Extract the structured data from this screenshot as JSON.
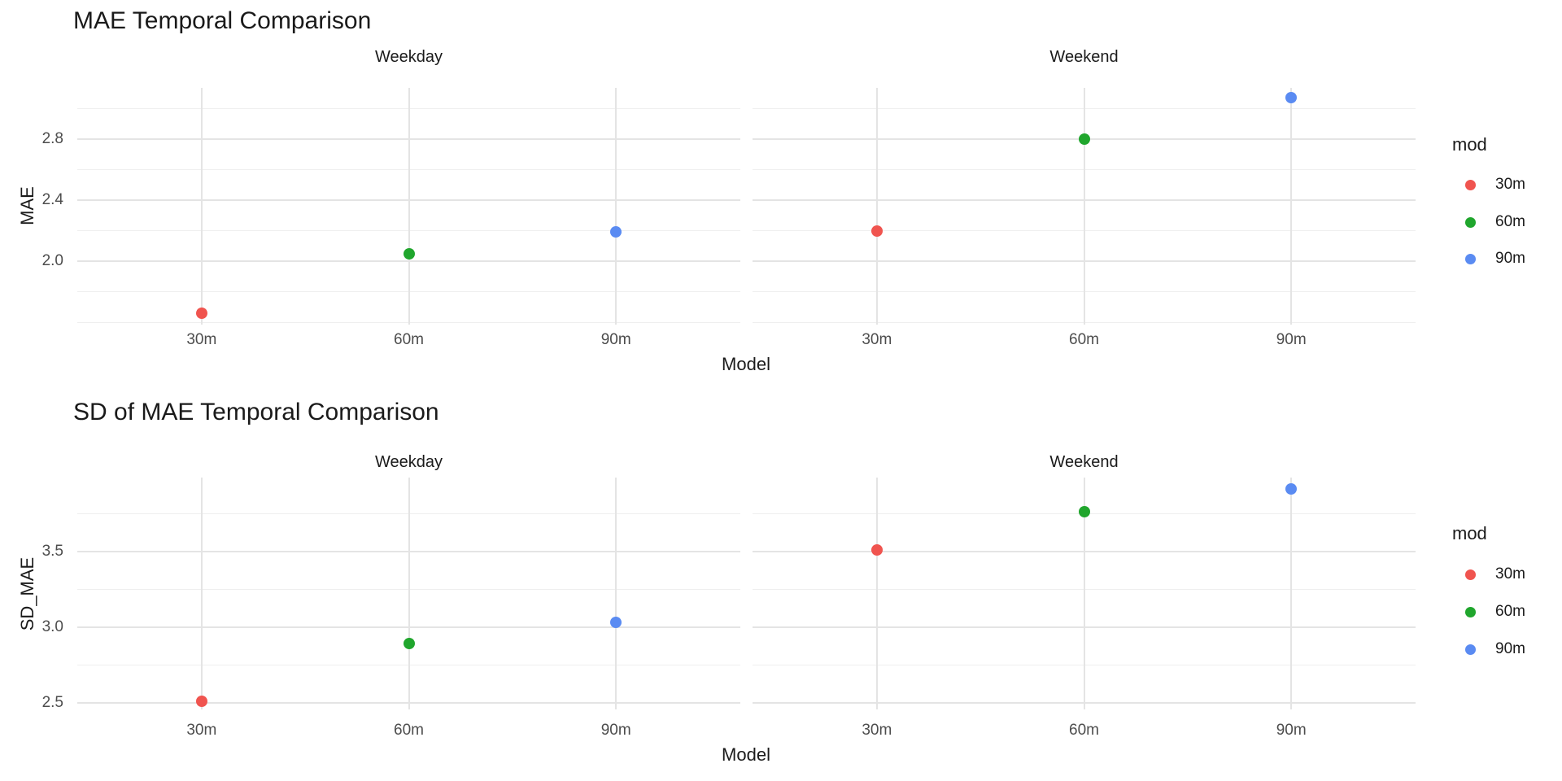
{
  "chart_data": [
    {
      "type": "scatter",
      "title": "MAE Temporal Comparison",
      "xlabel": "Model",
      "ylabel": "MAE",
      "facets": [
        "Weekday",
        "Weekend"
      ],
      "categories": [
        "30m",
        "60m",
        "90m"
      ],
      "series": [
        {
          "name": "30m",
          "color": "#f0544f",
          "values": {
            "Weekday": 1.66,
            "Weekend": 2.2
          }
        },
        {
          "name": "60m",
          "color": "#20a62d",
          "values": {
            "Weekday": 2.05,
            "Weekend": 2.8
          }
        },
        {
          "name": "90m",
          "color": "#5a8bf2",
          "values": {
            "Weekday": 2.19,
            "Weekend": 3.07
          }
        }
      ],
      "y_ticks_major": [
        2.8,
        2.4,
        2.0
      ],
      "y_tick_labels": [
        "2.8",
        "2.4",
        "2.0"
      ],
      "y_ticks_minor": [
        3.0,
        2.6,
        2.2,
        1.8,
        1.6
      ],
      "ylim": [
        1.58,
        3.14
      ],
      "grid": true,
      "legend": {
        "title": "mod",
        "position": "right",
        "items": [
          "30m",
          "60m",
          "90m"
        ]
      }
    },
    {
      "type": "scatter",
      "title": "SD of MAE Temporal Comparison",
      "xlabel": "Model",
      "ylabel": "SD_MAE",
      "facets": [
        "Weekday",
        "Weekend"
      ],
      "categories": [
        "30m",
        "60m",
        "90m"
      ],
      "series": [
        {
          "name": "30m",
          "color": "#f0544f",
          "values": {
            "Weekday": 2.51,
            "Weekend": 3.51
          }
        },
        {
          "name": "60m",
          "color": "#20a62d",
          "values": {
            "Weekday": 2.89,
            "Weekend": 3.76
          }
        },
        {
          "name": "90m",
          "color": "#5a8bf2",
          "values": {
            "Weekday": 3.03,
            "Weekend": 3.91
          }
        }
      ],
      "y_ticks_major": [
        3.5,
        3.0,
        2.5
      ],
      "y_tick_labels": [
        "3.5",
        "3.0",
        "2.5"
      ],
      "y_ticks_minor": [
        3.75,
        3.25,
        2.75
      ],
      "ylim": [
        2.45,
        3.99
      ],
      "grid": true,
      "legend": {
        "title": "mod",
        "position": "right",
        "items": [
          "30m",
          "60m",
          "90m"
        ]
      }
    }
  ]
}
